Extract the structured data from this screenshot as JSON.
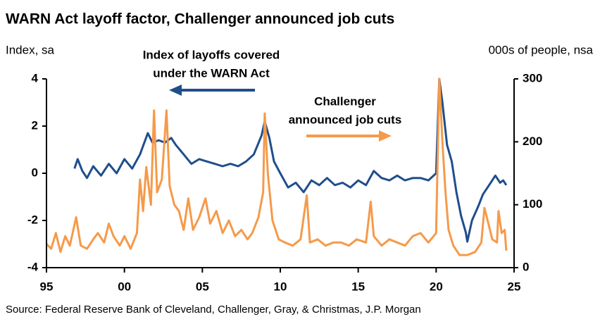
{
  "chart_data": {
    "type": "line",
    "title": "WARN Act layoff factor, Challenger announced job cuts",
    "ylabel": "Index, sa",
    "y2label": "000s of people, nsa",
    "source": "Source: Federal Reserve Bank of Cleveland, Challenger, Gray, & Christmas, J.P. Morgan",
    "annotations": [
      {
        "lines": [
          "Index of layoffs covered",
          "under the WARN Act"
        ],
        "color": "#1f4e8c"
      },
      {
        "lines": [
          "Challenger",
          "announced job cuts"
        ],
        "color": "#f59a4a"
      }
    ],
    "xlim": [
      1995,
      2025
    ],
    "xticks": [
      {
        "value": 1995,
        "label": "95"
      },
      {
        "value": 2000,
        "label": "00"
      },
      {
        "value": 2005,
        "label": "05"
      },
      {
        "value": 2010,
        "label": "10"
      },
      {
        "value": 2015,
        "label": "15"
      },
      {
        "value": 2020,
        "label": "20"
      },
      {
        "value": 2025,
        "label": "25"
      }
    ],
    "ylim": [
      -4,
      4
    ],
    "yticks": [
      -4,
      -2,
      0,
      2,
      4
    ],
    "y2lim": [
      0,
      300
    ],
    "y2ticks": [
      0,
      100,
      200,
      300
    ],
    "series": [
      {
        "color": "#1f4e8c",
        "axis": "y",
        "x": [
          1996.8,
          1997.0,
          1997.3,
          1997.6,
          1998.0,
          1998.5,
          1999.0,
          1999.5,
          2000.0,
          2000.5,
          2001.0,
          2001.5,
          2001.8,
          2002.2,
          2002.6,
          2003.0,
          2003.3,
          2003.8,
          2004.3,
          2004.8,
          2005.3,
          2005.8,
          2006.3,
          2006.8,
          2007.3,
          2007.8,
          2008.3,
          2008.8,
          2009.0,
          2009.3,
          2009.6,
          2010.0,
          2010.5,
          2011.0,
          2011.5,
          2012.0,
          2012.5,
          2013.0,
          2013.5,
          2014.0,
          2014.5,
          2015.0,
          2015.5,
          2016.0,
          2016.5,
          2017.0,
          2017.5,
          2018.0,
          2018.5,
          2019.0,
          2019.5,
          2020.0,
          2020.2,
          2020.4,
          2020.7,
          2021.0,
          2021.3,
          2021.6,
          2021.9,
          2022.0,
          2022.3,
          2022.7,
          2023.0,
          2023.5,
          2023.8,
          2024.1,
          2024.3,
          2024.5
        ],
        "values": [
          0.2,
          0.6,
          0.1,
          -0.2,
          0.3,
          -0.1,
          0.4,
          0.0,
          0.6,
          0.2,
          0.8,
          1.7,
          1.3,
          1.4,
          1.3,
          1.5,
          1.2,
          0.8,
          0.4,
          0.6,
          0.5,
          0.4,
          0.3,
          0.4,
          0.3,
          0.5,
          0.8,
          1.6,
          2.2,
          1.5,
          0.5,
          0.0,
          -0.6,
          -0.4,
          -0.8,
          -0.3,
          -0.5,
          -0.2,
          -0.5,
          -0.4,
          -0.6,
          -0.3,
          -0.5,
          0.1,
          -0.2,
          -0.3,
          -0.1,
          -0.3,
          -0.2,
          -0.2,
          -0.3,
          0.0,
          4.0,
          3.0,
          1.2,
          0.5,
          -0.8,
          -1.8,
          -2.5,
          -2.9,
          -2.0,
          -1.4,
          -0.9,
          -0.4,
          -0.1,
          -0.4,
          -0.3,
          -0.5
        ]
      },
      {
        "color": "#f59a4a",
        "axis": "y2",
        "x": [
          1995.0,
          1995.3,
          1995.6,
          1995.9,
          1996.2,
          1996.5,
          1996.9,
          1997.2,
          1997.6,
          1998.0,
          1998.3,
          1998.7,
          1999.0,
          1999.3,
          1999.7,
          2000.0,
          2000.4,
          2000.8,
          2001.0,
          2001.2,
          2001.4,
          2001.7,
          2001.9,
          2002.1,
          2002.4,
          2002.7,
          2002.9,
          2003.2,
          2003.5,
          2003.8,
          2004.1,
          2004.4,
          2004.8,
          2005.2,
          2005.5,
          2005.9,
          2006.3,
          2006.7,
          2007.1,
          2007.5,
          2007.9,
          2008.2,
          2008.6,
          2008.9,
          2009.0,
          2009.2,
          2009.5,
          2009.9,
          2010.3,
          2010.8,
          2011.3,
          2011.7,
          2011.9,
          2012.4,
          2012.9,
          2013.4,
          2013.9,
          2014.4,
          2014.9,
          2015.5,
          2015.8,
          2016.0,
          2016.5,
          2017.0,
          2017.5,
          2018.0,
          2018.5,
          2019.0,
          2019.5,
          2020.0,
          2020.2,
          2020.4,
          2020.6,
          2020.8,
          2021.1,
          2021.5,
          2022.0,
          2022.5,
          2022.9,
          2023.1,
          2023.3,
          2023.6,
          2023.9,
          2024.0,
          2024.2,
          2024.4,
          2024.5
        ],
        "values": [
          38,
          30,
          55,
          25,
          50,
          35,
          80,
          35,
          30,
          45,
          55,
          40,
          70,
          50,
          35,
          50,
          30,
          55,
          140,
          90,
          160,
          100,
          250,
          120,
          140,
          250,
          130,
          100,
          90,
          60,
          110,
          60,
          80,
          110,
          70,
          90,
          55,
          75,
          50,
          60,
          45,
          55,
          80,
          120,
          245,
          150,
          75,
          45,
          40,
          35,
          45,
          115,
          40,
          45,
          35,
          40,
          40,
          35,
          45,
          40,
          105,
          50,
          35,
          45,
          40,
          35,
          50,
          55,
          40,
          55,
          300,
          200,
          120,
          60,
          35,
          20,
          20,
          25,
          40,
          95,
          75,
          45,
          40,
          90,
          55,
          60,
          27
        ]
      }
    ]
  }
}
